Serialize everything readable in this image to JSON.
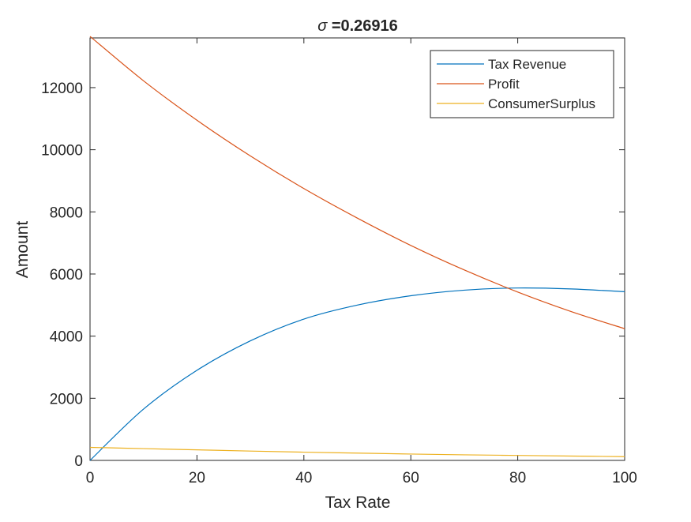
{
  "chart_data": {
    "type": "line",
    "title_symbol": "σ",
    "title_rest": " =0.26916",
    "xlabel": "Tax Rate",
    "ylabel": "Amount",
    "xlim": [
      0,
      100
    ],
    "ylim": [
      0,
      13600
    ],
    "xticks": [
      0,
      20,
      40,
      60,
      80,
      100
    ],
    "yticks": [
      0,
      2000,
      4000,
      6000,
      8000,
      10000,
      12000
    ],
    "grid": false,
    "legend_position": "top-right",
    "x": [
      0,
      10,
      20,
      30,
      40,
      50,
      60,
      70,
      80,
      90,
      100
    ],
    "series": [
      {
        "name": "Tax Revenue",
        "color": "#0072BD",
        "values": [
          0,
          1650,
          2900,
          3850,
          4550,
          5000,
          5300,
          5480,
          5550,
          5520,
          5430
        ]
      },
      {
        "name": "Profit",
        "color": "#D95319",
        "values": [
          13650,
          12220,
          10950,
          9800,
          8750,
          7800,
          6920,
          6130,
          5420,
          4790,
          4240
        ]
      },
      {
        "name": "ConsumerSurplus",
        "color": "#EDB120",
        "values": [
          420,
          380,
          340,
          300,
          265,
          235,
          205,
          180,
          160,
          140,
          120
        ]
      }
    ]
  }
}
